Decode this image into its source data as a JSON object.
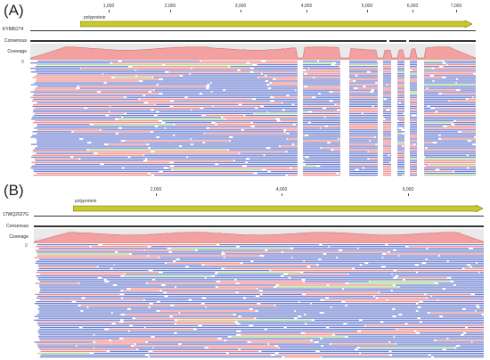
{
  "panels": [
    {
      "id": "A",
      "label": "(A)",
      "sequence_name": "KY886274",
      "annotation_label": "polyprotein",
      "ticks": [
        "1,000",
        "2,000",
        "3,000",
        "4,000",
        "5,000",
        "6,000",
        "7,000"
      ],
      "consensus_label": "Consensus",
      "coverage_label": "Coverage",
      "coverage_max": "...",
      "coverage_min": "0"
    },
    {
      "id": "B",
      "label": "(B)",
      "sequence_name": "17WQ2027G",
      "annotation_label": "polyprotein",
      "ticks": [
        "2,000",
        "4,000",
        "6,000"
      ],
      "consensus_label": "Consensus",
      "coverage_label": "Coverage",
      "coverage_max": "...",
      "coverage_min": "0"
    }
  ],
  "colors": {
    "read_blue": "#6c7fd1",
    "mismatch_red": "#f08a87",
    "mismatch_green": "#a8d98a",
    "coverage_fill": "#f2a0a0",
    "coverage_stroke": "#c76a6a",
    "annotation_fill": "#c9c92a",
    "annotation_stroke": "#6b6b10"
  }
}
